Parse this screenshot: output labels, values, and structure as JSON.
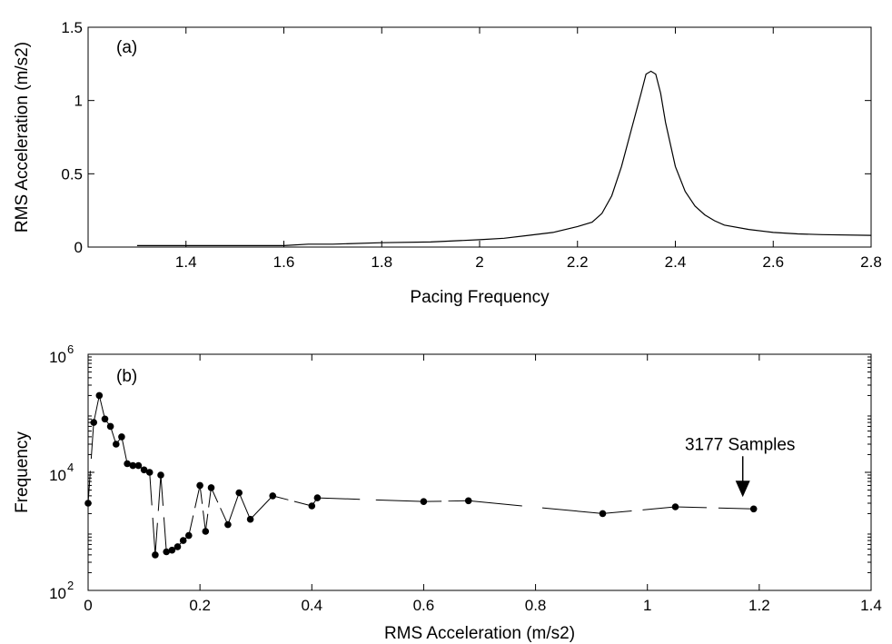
{
  "chart_data": [
    {
      "type": "line",
      "panel_label": "(a)",
      "xlabel": "Pacing Frequency",
      "ylabel": "RMS Acceleration (m/s2)",
      "xlim": [
        1.2,
        2.8
      ],
      "ylim": [
        0,
        1.5
      ],
      "xticks": [
        "1.4",
        "1.6",
        "1.8",
        "2",
        "2.2",
        "2.4",
        "2.6",
        "2.8"
      ],
      "yticks": [
        "0",
        "0.5",
        "1",
        "1.5"
      ],
      "grid": false,
      "legend": "none",
      "x": [
        1.3,
        1.4,
        1.5,
        1.6,
        1.65,
        1.7,
        1.8,
        1.9,
        2.0,
        2.05,
        2.1,
        2.15,
        2.2,
        2.23,
        2.25,
        2.27,
        2.29,
        2.31,
        2.33,
        2.34,
        2.35,
        2.36,
        2.37,
        2.38,
        2.4,
        2.42,
        2.44,
        2.46,
        2.48,
        2.5,
        2.55,
        2.6,
        2.65,
        2.7,
        2.8
      ],
      "y": [
        0.01,
        0.01,
        0.01,
        0.01,
        0.02,
        0.02,
        0.03,
        0.035,
        0.05,
        0.06,
        0.08,
        0.1,
        0.14,
        0.17,
        0.23,
        0.35,
        0.55,
        0.8,
        1.05,
        1.18,
        1.2,
        1.18,
        1.05,
        0.85,
        0.55,
        0.38,
        0.28,
        0.22,
        0.18,
        0.15,
        0.12,
        0.1,
        0.09,
        0.085,
        0.08
      ]
    },
    {
      "type": "scatter",
      "panel_label": "(b)",
      "xlabel": "RMS Acceleration (m/s2)",
      "ylabel": "Frequency",
      "xlim": [
        0,
        1.4
      ],
      "ylim_log10": [
        2,
        6
      ],
      "yscale": "log",
      "xticks": [
        "0",
        "0.2",
        "0.4",
        "0.6",
        "0.8",
        "1",
        "1.2",
        "1.4"
      ],
      "yticks": [
        {
          "base": "10",
          "exp": "2"
        },
        {
          "base": "10",
          "exp": "4"
        },
        {
          "base": "10",
          "exp": "6"
        }
      ],
      "grid": false,
      "legend": "none",
      "x": [
        0.0,
        0.01,
        0.02,
        0.03,
        0.04,
        0.05,
        0.06,
        0.07,
        0.08,
        0.09,
        0.1,
        0.11,
        0.12,
        0.13,
        0.14,
        0.15,
        0.16,
        0.17,
        0.18,
        0.2,
        0.21,
        0.22,
        0.25,
        0.27,
        0.29,
        0.33,
        0.4,
        0.41,
        0.6,
        0.68,
        0.92,
        1.05,
        1.19
      ],
      "y": [
        3000,
        70000,
        200000,
        80000,
        60000,
        30000,
        40000,
        14000,
        13000,
        13000,
        11000,
        10000,
        400,
        9000,
        450,
        480,
        550,
        700,
        850,
        6000,
        1000,
        5500,
        1300,
        4500,
        1600,
        4000,
        2700,
        3700,
        3200,
        3300,
        2000,
        2600,
        2400
      ],
      "annotations": [
        {
          "text": "3177 Samples",
          "x": 1.19,
          "y": 2400
        }
      ]
    }
  ]
}
